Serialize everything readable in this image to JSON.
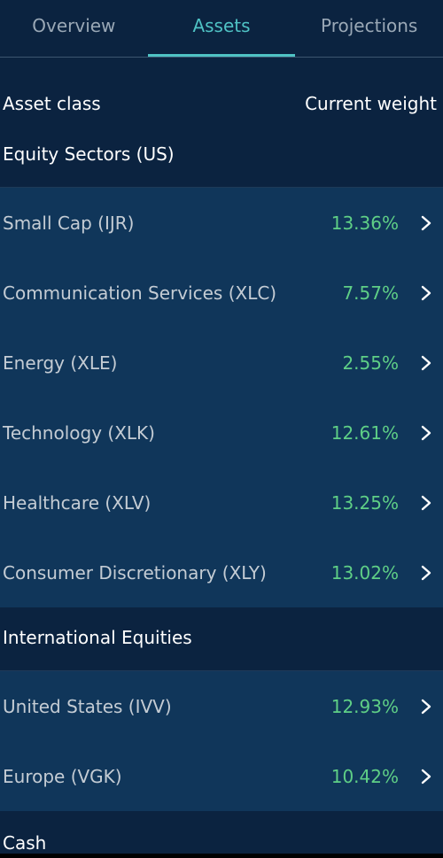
{
  "tabs": [
    {
      "label": "Overview"
    },
    {
      "label": "Assets"
    },
    {
      "label": "Projections"
    }
  ],
  "active_tab": "Assets",
  "columns": {
    "left": "Asset class",
    "right": "Current weight"
  },
  "groups": [
    {
      "title": "Equity Sectors (US)",
      "items": [
        {
          "name": "Small Cap (IJR)",
          "weight": "13.36%"
        },
        {
          "name": "Communication Services (XLC)",
          "weight": "7.57%"
        },
        {
          "name": "Energy (XLE)",
          "weight": "2.55%"
        },
        {
          "name": "Technology (XLK)",
          "weight": "12.61%"
        },
        {
          "name": "Healthcare (XLV)",
          "weight": "13.25%"
        },
        {
          "name": "Consumer Discretionary (XLY)",
          "weight": "13.02%"
        }
      ]
    },
    {
      "title": "International Equities",
      "items": [
        {
          "name": "United States (IVV)",
          "weight": "12.93%"
        },
        {
          "name": "Europe (VGK)",
          "weight": "10.42%"
        }
      ]
    },
    {
      "title": "Cash",
      "items": []
    }
  ],
  "colors": {
    "background": "#0b2340",
    "row_background": "#10365a",
    "accent": "#4fc2c4",
    "positive": "#5fcf86"
  },
  "icons": {
    "row_chevron": "chevron-right-icon"
  }
}
